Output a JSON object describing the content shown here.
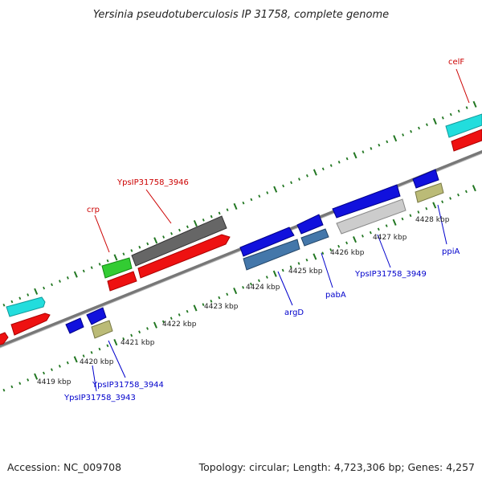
{
  "title": "Yersinia pseudotuberculosis IP 31758, complete genome",
  "footer": {
    "accession": "Accession: NC_009708",
    "topology": "Topology: circular; Length: 4,723,306 bp; Genes: 4,257"
  },
  "colors": {
    "forward_label": "#cc0000",
    "reverse_label": "#0000cc",
    "tick": "#227722",
    "backbone": "#888888"
  },
  "kbp_labels": [
    "4419 kbp",
    "4420 kbp",
    "4421 kbp",
    "4422 kbp",
    "4423 kbp",
    "4424 kbp",
    "4425 kbp",
    "4426 kbp",
    "4427 kbp",
    "4428 kbp"
  ],
  "gene_labels": [
    "celF",
    "YpsIP31758_3946",
    "crp",
    "argD",
    "pabA",
    "YpsIP31758_3949",
    "ppiA",
    "YpsIP31758_3944",
    "YpsIP31758_3943"
  ]
}
